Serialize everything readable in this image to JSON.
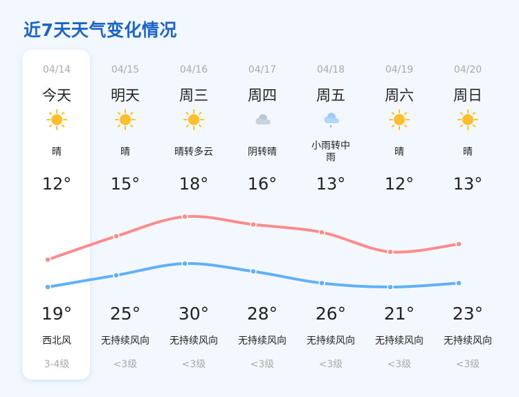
{
  "title": "近7天天气变化情况",
  "colors": {
    "accent": "#1c63c9",
    "high_line": "#ff8c8c",
    "low_line": "#5fb0ff"
  },
  "days": [
    {
      "date": "04/14",
      "day": "今天",
      "icon": "sunny-icon",
      "condition": "晴",
      "low": "12°",
      "high": "19°",
      "wind": "西北风",
      "level": "3-4级"
    },
    {
      "date": "04/15",
      "day": "明天",
      "icon": "sunny-icon",
      "condition": "晴",
      "low": "15°",
      "high": "25°",
      "wind": "无持续风向",
      "level": "<3级"
    },
    {
      "date": "04/16",
      "day": "周三",
      "icon": "sunny-icon",
      "condition": "晴转多云",
      "low": "18°",
      "high": "30°",
      "wind": "无持续风向",
      "level": "<3级"
    },
    {
      "date": "04/17",
      "day": "周四",
      "icon": "cloudy-icon",
      "condition": "阴转晴",
      "low": "16°",
      "high": "28°",
      "wind": "无持续风向",
      "level": "<3级"
    },
    {
      "date": "04/18",
      "day": "周五",
      "icon": "rain-icon",
      "condition": "小雨转中雨",
      "low": "13°",
      "high": "26°",
      "wind": "无持续风向",
      "level": "<3级"
    },
    {
      "date": "04/19",
      "day": "周六",
      "icon": "sunny-icon",
      "condition": "晴",
      "low": "12°",
      "high": "21°",
      "wind": "无持续风向",
      "level": "<3级"
    },
    {
      "date": "04/20",
      "day": "周日",
      "icon": "sunny-icon",
      "condition": "晴",
      "low": "13°",
      "high": "23°",
      "wind": "无持续风向",
      "level": "<3级"
    }
  ],
  "series": {
    "high": [
      19,
      25,
      30,
      28,
      26,
      21,
      23
    ],
    "low": [
      12,
      15,
      18,
      16,
      13,
      12,
      13
    ]
  }
}
